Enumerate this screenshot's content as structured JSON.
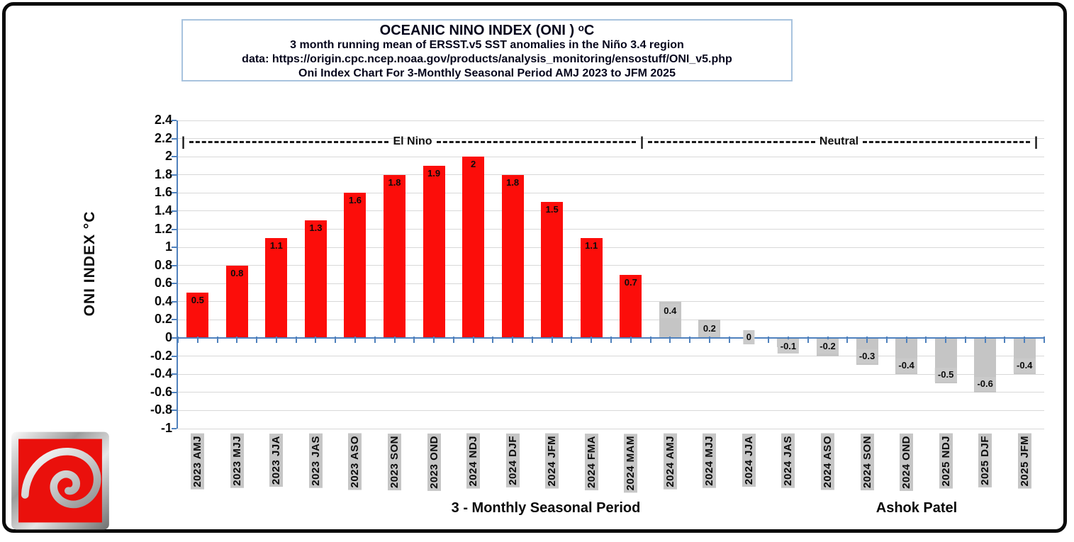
{
  "title_box": {
    "line1": "OCEANIC NINO INDEX (ONI ) ᵒC",
    "line2": "3 month running mean of ERSST.v5 SST anomalies in the Niño 3.4 region",
    "line3": "data: https://origin.cpc.ncep.noaa.gov/products/analysis_monitoring/ensostuff/ONI_v5.php",
    "line4": "Oni Index Chart For 3-Monthly Seasonal Period AMJ 2023 to JFM 2025",
    "border_color": "#a8c3de"
  },
  "y_axis": {
    "title": "ONI INDEX °C",
    "tick_labels": [
      "2.4",
      "2.2",
      "2",
      "1.8",
      "1.6",
      "1.4",
      "1.2",
      "1",
      "0.8",
      "0.6",
      "0.4",
      "0.2",
      "0",
      "-0.2",
      "-0.4",
      "-0.6",
      "-0.8",
      "-1"
    ],
    "tick_values": [
      2.4,
      2.2,
      2,
      1.8,
      1.6,
      1.4,
      1.2,
      1,
      0.8,
      0.6,
      0.4,
      0.2,
      0,
      -0.2,
      -0.4,
      -0.6,
      -0.8,
      -1
    ],
    "max": 2.4,
    "min": -1,
    "step": 0.2
  },
  "x_axis": {
    "title": "3 - Monthly Seasonal Period"
  },
  "author": "Ashok Patel",
  "annotation": {
    "pipe": "|",
    "el_nino": "El Nino",
    "neutral": "Neutral"
  },
  "logo": {
    "name": "red-spiral-logo"
  },
  "colors": {
    "el_nino_bar": "#fc0d0a",
    "neutral_bar": "#c5c5c5",
    "axis": "#4f81bd",
    "gridline": "#d8d8d8",
    "label_bg": "#cacaca",
    "xlabel_bg": "#c6c6c6",
    "frame": "#0b0b0b"
  },
  "chart_data": {
    "type": "bar",
    "title": "OCEANIC NINO INDEX (ONI ) °C",
    "xlabel": "3 - Monthly Seasonal Period",
    "ylabel": "ONI INDEX °C",
    "ylim": [
      -1,
      2.4
    ],
    "ytick_step": 0.2,
    "grid": true,
    "legend": "none",
    "categories": [
      "2023 AMJ",
      "2023 MJJ",
      "2023 JJA",
      "2023 JAS",
      "2023 ASO",
      "2023 SON",
      "2023 OND",
      "2024 NDJ",
      "2024 DJF",
      "2024 JFM",
      "2024 FMA",
      "2024 MAM",
      "2024 AMJ",
      "2024 MJJ",
      "2024 JJA",
      "2024 JAS",
      "2024 ASO",
      "2024 SON",
      "2024 OND",
      "2025 NDJ",
      "2025 DJF",
      "2025 JFM"
    ],
    "values": [
      0.5,
      0.8,
      1.1,
      1.3,
      1.6,
      1.8,
      1.9,
      2,
      1.8,
      1.5,
      1.1,
      0.7,
      0.4,
      0.2,
      0,
      -0.1,
      -0.2,
      -0.3,
      -0.4,
      -0.5,
      -0.6,
      -0.4
    ],
    "labels": [
      "0.5",
      "0.8",
      "1.1",
      "1.3",
      "1.6",
      "1.8",
      "1.9",
      "2",
      "1.8",
      "1.5",
      "1.1",
      "0.7",
      "0.4",
      "0.2",
      "0",
      "-0.1",
      "-0.2",
      "-0.3",
      "-0.4",
      "-0.5",
      "-0.6",
      "-0.4"
    ],
    "series": [
      {
        "name": "El Nino",
        "color": "#fc0d0a",
        "count": 12
      },
      {
        "name": "Neutral",
        "color": "#c5c5c5",
        "count": 10
      }
    ],
    "annotations": [
      {
        "label": "El Nino",
        "from": "2023 AMJ",
        "to": "2024 MAM"
      },
      {
        "label": "Neutral",
        "from": "2024 AMJ",
        "to": "2025 JFM"
      }
    ]
  }
}
